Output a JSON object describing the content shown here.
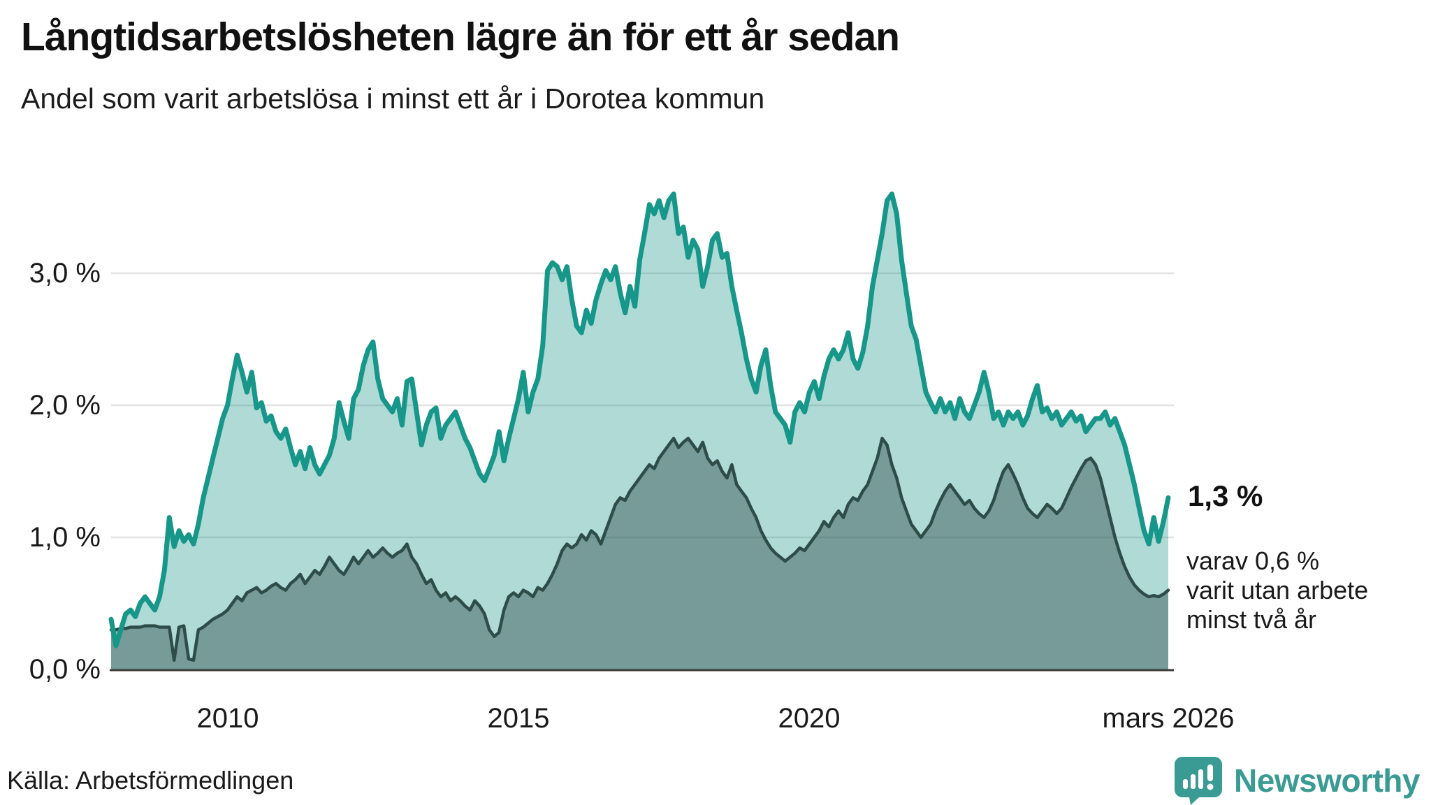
{
  "header": {
    "title": "Långtidsarbetslösheten lägre än för ett år sedan",
    "subtitle": "Andel som varit arbetslösa i minst ett år i Dorotea kommun"
  },
  "annotations": {
    "end_value_1yr": "1,3 %",
    "note_line1": "varav 0,6 %",
    "note_line2": "varit utan arbete",
    "note_line3": "minst två år"
  },
  "footer": {
    "source": "Källa: Arbetsförmedlingen",
    "brand": "Newsworthy"
  },
  "colors": {
    "accent_line": "#17968a",
    "accent_fill": "rgba(26,150,138,0.35)",
    "dark_line": "#2e4c48",
    "dark_fill": "rgba(40,70,66,0.42)",
    "grid": "#e2e2e2",
    "axis": "#3c3c3c",
    "brand_teal": "#399b93"
  },
  "chart_data": {
    "type": "area",
    "title": "Långtidsarbetslösheten lägre än för ett år sedan",
    "subtitle": "Andel som varit arbetslösa i minst ett år i Dorotea kommun",
    "unit": "%",
    "freq": "monthly",
    "x_start": "2008-01",
    "x_end": "2026-03",
    "ylim": [
      0,
      3.7
    ],
    "grid": true,
    "legend_position": "end-of-line annotations",
    "y_ticks": [
      {
        "value": 0,
        "label": "0,0 %"
      },
      {
        "value": 1,
        "label": "1,0 %"
      },
      {
        "value": 2,
        "label": "2,0 %"
      },
      {
        "value": 3,
        "label": "3,0 %"
      }
    ],
    "x_ticks": [
      {
        "year": 2010.0,
        "label": "2010"
      },
      {
        "year": 2015.0,
        "label": "2015"
      },
      {
        "year": 2020.0,
        "label": "2020"
      },
      {
        "year": 2026.1667,
        "label": "mars 2026"
      }
    ],
    "series": [
      {
        "name": "Arbetslösa minst ett år",
        "end_label": "1,3 %",
        "end_value": 1.3,
        "values": [
          0.38,
          0.18,
          0.3,
          0.42,
          0.45,
          0.4,
          0.5,
          0.55,
          0.5,
          0.45,
          0.55,
          0.75,
          1.15,
          0.93,
          1.05,
          0.97,
          1.02,
          0.95,
          1.1,
          1.3,
          1.45,
          1.6,
          1.75,
          1.9,
          2.0,
          2.2,
          2.38,
          2.25,
          2.1,
          2.25,
          1.98,
          2.02,
          1.88,
          1.92,
          1.8,
          1.75,
          1.82,
          1.68,
          1.55,
          1.65,
          1.52,
          1.68,
          1.55,
          1.48,
          1.55,
          1.62,
          1.75,
          2.02,
          1.88,
          1.75,
          2.05,
          2.12,
          2.3,
          2.42,
          2.48,
          2.2,
          2.05,
          2.0,
          1.95,
          2.05,
          1.85,
          2.18,
          2.2,
          1.95,
          1.7,
          1.85,
          1.95,
          1.98,
          1.75,
          1.85,
          1.9,
          1.95,
          1.85,
          1.75,
          1.68,
          1.58,
          1.48,
          1.43,
          1.52,
          1.62,
          1.8,
          1.58,
          1.75,
          1.9,
          2.05,
          2.25,
          1.95,
          2.1,
          2.2,
          2.45,
          3.02,
          3.08,
          3.05,
          2.95,
          3.05,
          2.8,
          2.6,
          2.55,
          2.72,
          2.62,
          2.8,
          2.92,
          3.02,
          2.95,
          3.05,
          2.85,
          2.7,
          2.9,
          2.75,
          3.1,
          3.3,
          3.52,
          3.45,
          3.55,
          3.42,
          3.55,
          3.6,
          3.3,
          3.35,
          3.12,
          3.25,
          3.18,
          2.9,
          3.05,
          3.25,
          3.3,
          3.12,
          3.15,
          2.9,
          2.72,
          2.55,
          2.35,
          2.2,
          2.1,
          2.3,
          2.42,
          2.15,
          1.95,
          1.9,
          1.85,
          1.72,
          1.95,
          2.02,
          1.95,
          2.1,
          2.18,
          2.05,
          2.22,
          2.35,
          2.42,
          2.35,
          2.42,
          2.55,
          2.35,
          2.28,
          2.4,
          2.6,
          2.9,
          3.1,
          3.3,
          3.55,
          3.6,
          3.45,
          3.1,
          2.85,
          2.6,
          2.5,
          2.3,
          2.1,
          2.02,
          1.95,
          2.05,
          1.95,
          2.02,
          1.9,
          2.05,
          1.95,
          1.9,
          2.0,
          2.1,
          2.25,
          2.1,
          1.9,
          1.95,
          1.85,
          1.95,
          1.9,
          1.95,
          1.85,
          1.92,
          2.05,
          2.15,
          1.95,
          1.98,
          1.9,
          1.95,
          1.85,
          1.9,
          1.95,
          1.88,
          1.92,
          1.8,
          1.85,
          1.9,
          1.9,
          1.95,
          1.85,
          1.9,
          1.8,
          1.7,
          1.55,
          1.4,
          1.22,
          1.05,
          0.95,
          1.15,
          0.97,
          1.12,
          1.3
        ]
      },
      {
        "name": "Arbetslösa minst två år",
        "end_label": "0,6 %",
        "end_value": 0.6,
        "values": [
          0.3,
          0.3,
          0.31,
          0.31,
          0.32,
          0.32,
          0.32,
          0.33,
          0.33,
          0.33,
          0.32,
          0.32,
          0.32,
          0.07,
          0.32,
          0.33,
          0.08,
          0.07,
          0.3,
          0.32,
          0.35,
          0.38,
          0.4,
          0.42,
          0.45,
          0.5,
          0.55,
          0.52,
          0.58,
          0.6,
          0.62,
          0.58,
          0.6,
          0.63,
          0.65,
          0.62,
          0.6,
          0.65,
          0.68,
          0.72,
          0.65,
          0.7,
          0.75,
          0.72,
          0.78,
          0.85,
          0.8,
          0.75,
          0.72,
          0.78,
          0.85,
          0.8,
          0.85,
          0.9,
          0.85,
          0.88,
          0.92,
          0.88,
          0.85,
          0.88,
          0.9,
          0.95,
          0.85,
          0.8,
          0.72,
          0.65,
          0.68,
          0.6,
          0.55,
          0.58,
          0.52,
          0.55,
          0.52,
          0.48,
          0.45,
          0.52,
          0.48,
          0.42,
          0.3,
          0.25,
          0.28,
          0.45,
          0.55,
          0.58,
          0.55,
          0.6,
          0.58,
          0.55,
          0.62,
          0.6,
          0.65,
          0.72,
          0.8,
          0.9,
          0.95,
          0.92,
          0.95,
          1.02,
          0.98,
          1.05,
          1.02,
          0.95,
          1.05,
          1.15,
          1.25,
          1.3,
          1.28,
          1.35,
          1.4,
          1.45,
          1.5,
          1.55,
          1.52,
          1.6,
          1.65,
          1.7,
          1.75,
          1.68,
          1.72,
          1.75,
          1.7,
          1.65,
          1.72,
          1.6,
          1.55,
          1.58,
          1.5,
          1.45,
          1.55,
          1.4,
          1.35,
          1.3,
          1.22,
          1.15,
          1.05,
          0.98,
          0.92,
          0.88,
          0.85,
          0.82,
          0.85,
          0.88,
          0.92,
          0.9,
          0.95,
          1.0,
          1.05,
          1.12,
          1.08,
          1.15,
          1.2,
          1.15,
          1.25,
          1.3,
          1.28,
          1.35,
          1.4,
          1.5,
          1.6,
          1.75,
          1.7,
          1.55,
          1.45,
          1.3,
          1.2,
          1.1,
          1.05,
          1.0,
          1.05,
          1.1,
          1.2,
          1.28,
          1.35,
          1.4,
          1.35,
          1.3,
          1.25,
          1.28,
          1.22,
          1.18,
          1.15,
          1.2,
          1.28,
          1.4,
          1.5,
          1.55,
          1.48,
          1.4,
          1.3,
          1.22,
          1.18,
          1.15,
          1.2,
          1.25,
          1.22,
          1.18,
          1.22,
          1.3,
          1.38,
          1.45,
          1.52,
          1.58,
          1.6,
          1.55,
          1.45,
          1.3,
          1.15,
          1.0,
          0.88,
          0.78,
          0.7,
          0.64,
          0.6,
          0.57,
          0.55,
          0.56,
          0.55,
          0.57,
          0.6
        ]
      }
    ]
  }
}
